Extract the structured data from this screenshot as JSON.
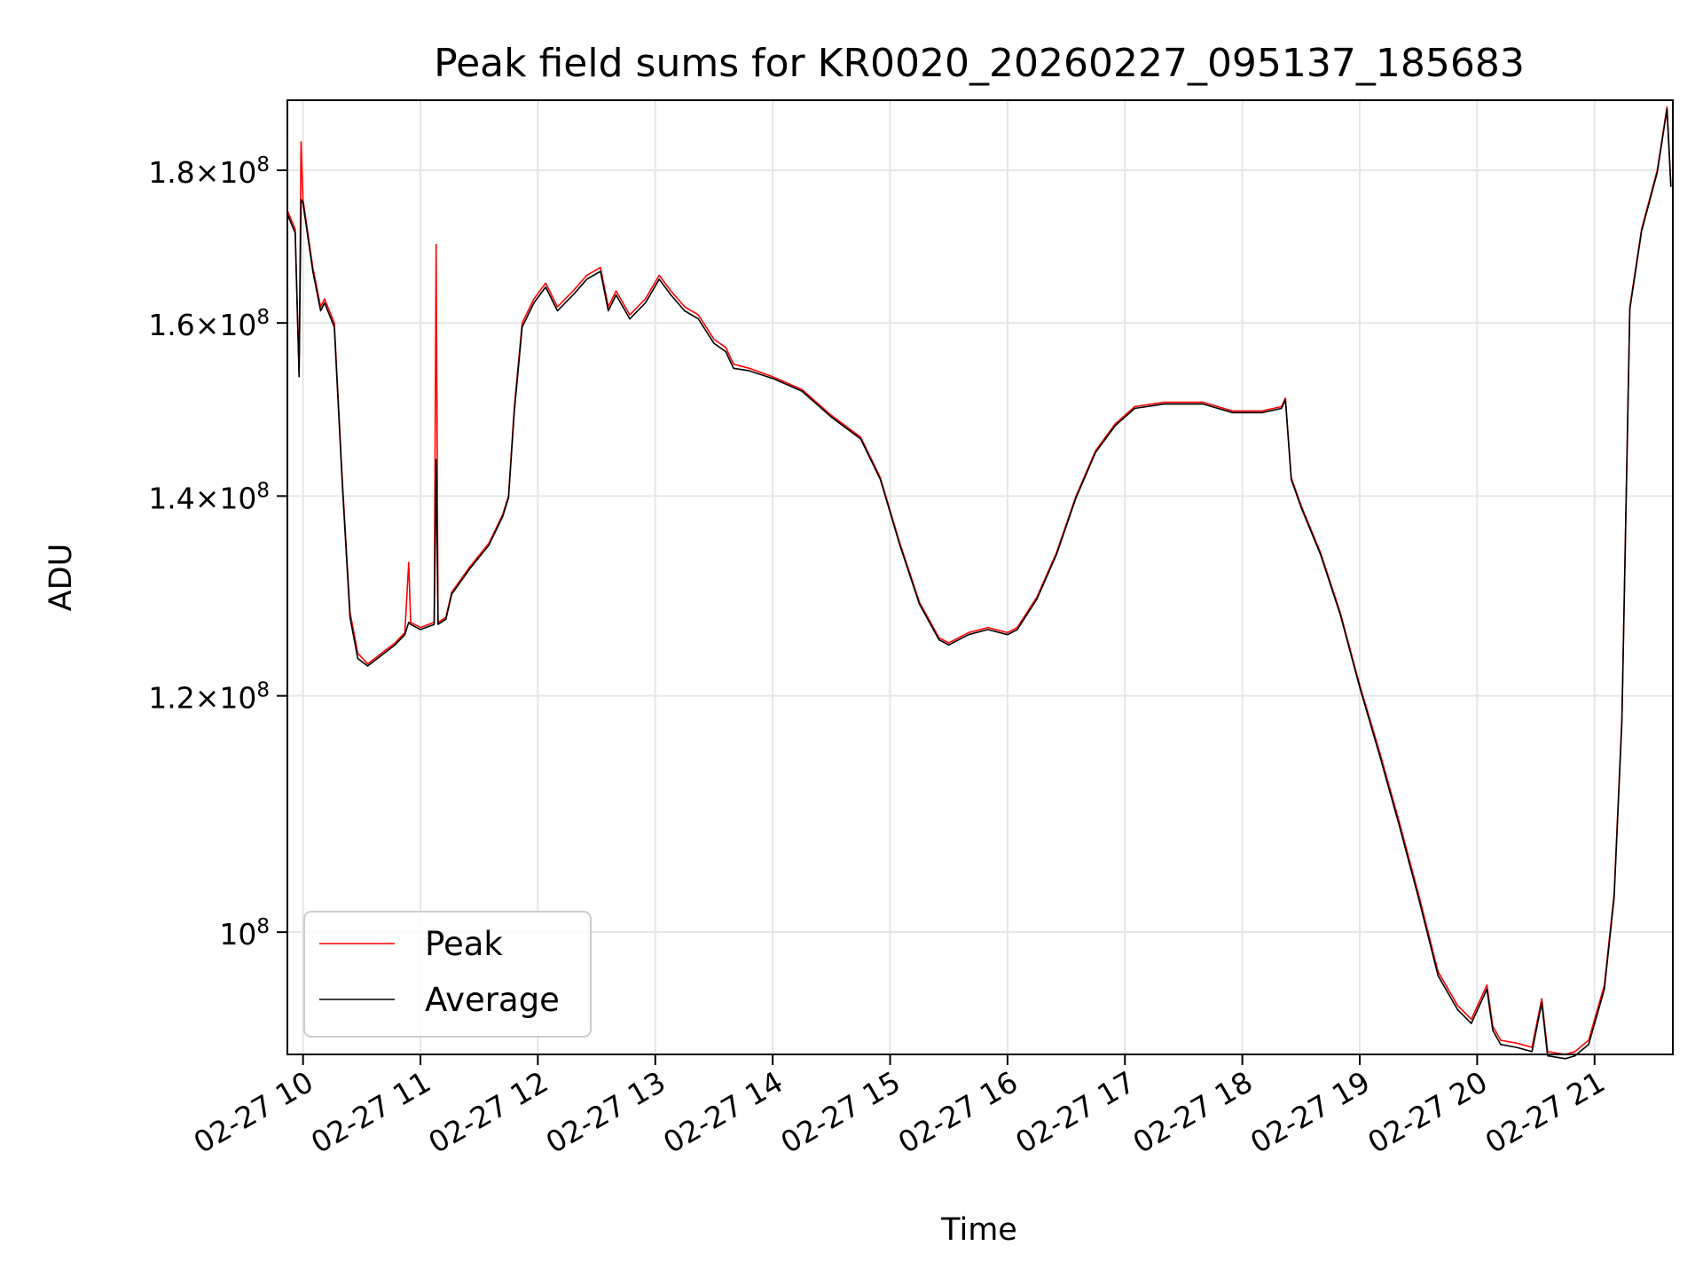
{
  "chart_data": {
    "type": "line",
    "title": "Peak field sums for KR0020_20260227_095137_185683",
    "xlabel": "Time",
    "ylabel": "ADU",
    "y_scale": "log",
    "ylim": [
      91000000,
      190000000
    ],
    "xlim": [
      "02-27 09:52",
      "02-27 21:40"
    ],
    "grid": true,
    "legend": {
      "placement": "lower-left"
    },
    "x_ticks": [
      {
        "t": "02-27 10:00",
        "label": "02-27 10"
      },
      {
        "t": "02-27 11:00",
        "label": "02-27 11"
      },
      {
        "t": "02-27 12:00",
        "label": "02-27 12"
      },
      {
        "t": "02-27 13:00",
        "label": "02-27 13"
      },
      {
        "t": "02-27 14:00",
        "label": "02-27 14"
      },
      {
        "t": "02-27 15:00",
        "label": "02-27 15"
      },
      {
        "t": "02-27 16:00",
        "label": "02-27 16"
      },
      {
        "t": "02-27 17:00",
        "label": "02-27 17"
      },
      {
        "t": "02-27 18:00",
        "label": "02-27 18"
      },
      {
        "t": "02-27 19:00",
        "label": "02-27 19"
      },
      {
        "t": "02-27 20:00",
        "label": "02-27 20"
      },
      {
        "t": "02-27 21:00",
        "label": "02-27 21"
      }
    ],
    "y_ticks": [
      {
        "value": 100000000,
        "mantissa": "",
        "exponent": "8"
      },
      {
        "value": 120000000,
        "mantissa": "1.2",
        "exponent": "8"
      },
      {
        "value": 140000000,
        "mantissa": "1.4",
        "exponent": "8"
      },
      {
        "value": 160000000,
        "mantissa": "1.6",
        "exponent": "8"
      },
      {
        "value": 180000000,
        "mantissa": "1.8",
        "exponent": "8"
      }
    ],
    "series": [
      {
        "name": "Peak",
        "color": "#ff0000",
        "points": [
          [
            "02-27 09:52",
            174.5
          ],
          [
            "02-27 09:56",
            172.0
          ],
          [
            "02-27 09:58",
            154.0
          ],
          [
            "02-27 09:59",
            184.0
          ],
          [
            "02-27 10:00",
            176.0
          ],
          [
            "02-27 10:05",
            167.0
          ],
          [
            "02-27 10:09",
            162.0
          ],
          [
            "02-27 10:11",
            163.0
          ],
          [
            "02-27 10:16",
            160.0
          ],
          [
            "02-27 10:20",
            142.0
          ],
          [
            "02-27 10:24",
            128.0
          ],
          [
            "02-27 10:28",
            124.0
          ],
          [
            "02-27 10:33",
            123.0
          ],
          [
            "02-27 10:40",
            124.0
          ],
          [
            "02-27 10:47",
            125.0
          ],
          [
            "02-27 10:52",
            126.0
          ],
          [
            "02-27 10:54",
            133.0
          ],
          [
            "02-27 10:55",
            127.0
          ],
          [
            "02-27 11:00",
            126.5
          ],
          [
            "02-27 11:07",
            127.0
          ],
          [
            "02-27 11:08",
            170.0
          ],
          [
            "02-27 11:09",
            127.0
          ],
          [
            "02-27 11:13",
            127.5
          ],
          [
            "02-27 11:16",
            130.0
          ],
          [
            "02-27 11:25",
            132.5
          ],
          [
            "02-27 11:35",
            135.0
          ],
          [
            "02-27 11:42",
            138.0
          ],
          [
            "02-27 11:45",
            140.0
          ],
          [
            "02-27 11:48",
            150.0
          ],
          [
            "02-27 11:52",
            160.0
          ],
          [
            "02-27 11:58",
            163.0
          ],
          [
            "02-27 12:04",
            165.0
          ],
          [
            "02-27 12:10",
            162.0
          ],
          [
            "02-27 12:18",
            164.0
          ],
          [
            "02-27 12:25",
            166.0
          ],
          [
            "02-27 12:32",
            167.0
          ],
          [
            "02-27 12:36",
            162.0
          ],
          [
            "02-27 12:40",
            164.0
          ],
          [
            "02-27 12:47",
            161.0
          ],
          [
            "02-27 12:55",
            163.0
          ],
          [
            "02-27 13:02",
            166.0
          ],
          [
            "02-27 13:08",
            164.0
          ],
          [
            "02-27 13:15",
            162.0
          ],
          [
            "02-27 13:22",
            161.0
          ],
          [
            "02-27 13:30",
            158.0
          ],
          [
            "02-27 13:36",
            157.0
          ],
          [
            "02-27 13:40",
            155.0
          ],
          [
            "02-27 13:48",
            154.5
          ],
          [
            "02-27 14:00",
            153.5
          ],
          [
            "02-27 14:15",
            152.0
          ],
          [
            "02-27 14:30",
            149.0
          ],
          [
            "02-27 14:45",
            146.5
          ],
          [
            "02-27 14:55",
            142.0
          ],
          [
            "02-27 15:05",
            135.0
          ],
          [
            "02-27 15:15",
            129.0
          ],
          [
            "02-27 15:25",
            125.5
          ],
          [
            "02-27 15:30",
            125.0
          ],
          [
            "02-27 15:40",
            126.0
          ],
          [
            "02-27 15:50",
            126.5
          ],
          [
            "02-27 16:00",
            126.0
          ],
          [
            "02-27 16:05",
            126.5
          ],
          [
            "02-27 16:15",
            129.5
          ],
          [
            "02-27 16:25",
            134.0
          ],
          [
            "02-27 16:35",
            140.0
          ],
          [
            "02-27 16:45",
            145.0
          ],
          [
            "02-27 16:55",
            148.0
          ],
          [
            "02-27 17:05",
            150.0
          ],
          [
            "02-27 17:20",
            150.5
          ],
          [
            "02-27 17:40",
            150.5
          ],
          [
            "02-27 17:55",
            149.5
          ],
          [
            "02-27 18:10",
            149.5
          ],
          [
            "02-27 18:20",
            150.0
          ],
          [
            "02-27 18:22",
            151.0
          ],
          [
            "02-27 18:25",
            142.0
          ],
          [
            "02-27 18:30",
            139.0
          ],
          [
            "02-27 18:40",
            134.0
          ],
          [
            "02-27 18:50",
            128.0
          ],
          [
            "02-27 19:00",
            121.0
          ],
          [
            "02-27 19:10",
            115.0
          ],
          [
            "02-27 19:20",
            109.0
          ],
          [
            "02-27 19:30",
            103.0
          ],
          [
            "02-27 19:40",
            97.0
          ],
          [
            "02-27 19:50",
            94.5
          ],
          [
            "02-27 19:57",
            93.5
          ],
          [
            "02-27 20:05",
            96.0
          ],
          [
            "02-27 20:08",
            93.0
          ],
          [
            "02-27 20:12",
            92.0
          ],
          [
            "02-27 20:20",
            91.8
          ],
          [
            "02-27 20:28",
            91.5
          ],
          [
            "02-27 20:33",
            95.0
          ],
          [
            "02-27 20:36",
            91.2
          ],
          [
            "02-27 20:45",
            91.0
          ],
          [
            "02-27 20:50",
            91.2
          ],
          [
            "02-27 20:57",
            92.0
          ],
          [
            "02-27 21:05",
            96.0
          ],
          [
            "02-27 21:10",
            103.0
          ],
          [
            "02-27 21:14",
            118.0
          ],
          [
            "02-27 21:18",
            162.0
          ],
          [
            "02-27 21:24",
            172.0
          ],
          [
            "02-27 21:32",
            180.0
          ],
          [
            "02-27 21:37",
            189.0
          ],
          [
            "02-27 21:39",
            178.0
          ]
        ]
      },
      {
        "name": "Average",
        "color": "#000000",
        "points": [
          [
            "02-27 09:52",
            174.0
          ],
          [
            "02-27 09:56",
            171.5
          ],
          [
            "02-27 09:58",
            153.5
          ],
          [
            "02-27 09:59",
            176.0
          ],
          [
            "02-27 10:00",
            175.5
          ],
          [
            "02-27 10:05",
            166.5
          ],
          [
            "02-27 10:09",
            161.5
          ],
          [
            "02-27 10:11",
            162.5
          ],
          [
            "02-27 10:16",
            159.5
          ],
          [
            "02-27 10:20",
            141.5
          ],
          [
            "02-27 10:24",
            127.5
          ],
          [
            "02-27 10:28",
            123.5
          ],
          [
            "02-27 10:33",
            122.8
          ],
          [
            "02-27 10:40",
            123.8
          ],
          [
            "02-27 10:47",
            124.8
          ],
          [
            "02-27 10:52",
            125.8
          ],
          [
            "02-27 10:54",
            127.0
          ],
          [
            "02-27 10:55",
            126.8
          ],
          [
            "02-27 11:00",
            126.3
          ],
          [
            "02-27 11:07",
            126.8
          ],
          [
            "02-27 11:08",
            144.0
          ],
          [
            "02-27 11:09",
            126.8
          ],
          [
            "02-27 11:13",
            127.3
          ],
          [
            "02-27 11:16",
            129.8
          ],
          [
            "02-27 11:25",
            132.3
          ],
          [
            "02-27 11:35",
            134.8
          ],
          [
            "02-27 11:42",
            137.8
          ],
          [
            "02-27 11:45",
            139.8
          ],
          [
            "02-27 11:48",
            149.5
          ],
          [
            "02-27 11:52",
            159.5
          ],
          [
            "02-27 11:58",
            162.5
          ],
          [
            "02-27 12:04",
            164.5
          ],
          [
            "02-27 12:10",
            161.5
          ],
          [
            "02-27 12:18",
            163.5
          ],
          [
            "02-27 12:25",
            165.5
          ],
          [
            "02-27 12:32",
            166.5
          ],
          [
            "02-27 12:36",
            161.5
          ],
          [
            "02-27 12:40",
            163.5
          ],
          [
            "02-27 12:47",
            160.5
          ],
          [
            "02-27 12:55",
            162.5
          ],
          [
            "02-27 13:02",
            165.5
          ],
          [
            "02-27 13:08",
            163.5
          ],
          [
            "02-27 13:15",
            161.5
          ],
          [
            "02-27 13:22",
            160.5
          ],
          [
            "02-27 13:30",
            157.5
          ],
          [
            "02-27 13:36",
            156.5
          ],
          [
            "02-27 13:40",
            154.5
          ],
          [
            "02-27 13:48",
            154.2
          ],
          [
            "02-27 14:00",
            153.3
          ],
          [
            "02-27 14:15",
            151.8
          ],
          [
            "02-27 14:30",
            148.8
          ],
          [
            "02-27 14:45",
            146.3
          ],
          [
            "02-27 14:55",
            141.8
          ],
          [
            "02-27 15:05",
            134.8
          ],
          [
            "02-27 15:15",
            128.8
          ],
          [
            "02-27 15:25",
            125.3
          ],
          [
            "02-27 15:30",
            124.8
          ],
          [
            "02-27 15:40",
            125.8
          ],
          [
            "02-27 15:50",
            126.3
          ],
          [
            "02-27 16:00",
            125.8
          ],
          [
            "02-27 16:05",
            126.3
          ],
          [
            "02-27 16:15",
            129.3
          ],
          [
            "02-27 16:25",
            133.8
          ],
          [
            "02-27 16:35",
            139.8
          ],
          [
            "02-27 16:45",
            144.8
          ],
          [
            "02-27 16:55",
            147.8
          ],
          [
            "02-27 17:05",
            149.8
          ],
          [
            "02-27 17:20",
            150.3
          ],
          [
            "02-27 17:40",
            150.3
          ],
          [
            "02-27 17:55",
            149.3
          ],
          [
            "02-27 18:10",
            149.3
          ],
          [
            "02-27 18:20",
            149.8
          ],
          [
            "02-27 18:22",
            150.8
          ],
          [
            "02-27 18:25",
            141.8
          ],
          [
            "02-27 18:30",
            138.8
          ],
          [
            "02-27 18:40",
            133.8
          ],
          [
            "02-27 18:50",
            127.8
          ],
          [
            "02-27 19:00",
            120.8
          ],
          [
            "02-27 19:10",
            114.7
          ],
          [
            "02-27 19:20",
            108.7
          ],
          [
            "02-27 19:30",
            102.7
          ],
          [
            "02-27 19:40",
            96.7
          ],
          [
            "02-27 19:50",
            94.2
          ],
          [
            "02-27 19:57",
            93.2
          ],
          [
            "02-27 20:05",
            95.7
          ],
          [
            "02-27 20:08",
            92.7
          ],
          [
            "02-27 20:12",
            91.7
          ],
          [
            "02-27 20:20",
            91.5
          ],
          [
            "02-27 20:28",
            91.2
          ],
          [
            "02-27 20:33",
            94.7
          ],
          [
            "02-27 20:36",
            90.9
          ],
          [
            "02-27 20:45",
            90.7
          ],
          [
            "02-27 20:50",
            90.9
          ],
          [
            "02-27 20:57",
            91.7
          ],
          [
            "02-27 21:05",
            95.7
          ],
          [
            "02-27 21:10",
            102.7
          ],
          [
            "02-27 21:14",
            117.7
          ],
          [
            "02-27 21:18",
            161.7
          ],
          [
            "02-27 21:24",
            171.7
          ],
          [
            "02-27 21:32",
            179.7
          ],
          [
            "02-27 21:37",
            188.7
          ],
          [
            "02-27 21:39",
            177.7
          ]
        ]
      }
    ]
  }
}
